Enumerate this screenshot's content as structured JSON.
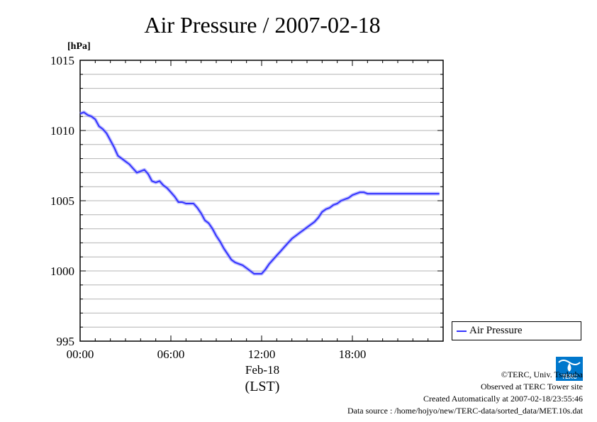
{
  "chart_data": {
    "type": "line",
    "title": "Air Pressure / 2007-02-18",
    "ylabel": "[hPa]",
    "xlabel_date": "Feb-18",
    "xlabel_tz": "(LST)",
    "ylim": [
      995,
      1015
    ],
    "xlim_hours": [
      0,
      24
    ],
    "yticks": [
      995,
      1000,
      1005,
      1010,
      1015
    ],
    "ytick_labels": [
      "995",
      "1000",
      "1005",
      "1010",
      "1015"
    ],
    "xtick_hours": [
      0,
      6,
      12,
      18
    ],
    "xtick_labels": [
      "00:00",
      "06:00",
      "12:00",
      "18:00"
    ],
    "grid": true,
    "legend_position": "right",
    "series": [
      {
        "name": "Air Pressure",
        "color": "#3333ff",
        "x_hours": [
          0,
          0.25,
          0.5,
          0.75,
          1.0,
          1.25,
          1.5,
          1.75,
          2.0,
          2.25,
          2.5,
          2.75,
          3.0,
          3.25,
          3.5,
          3.75,
          4.0,
          4.25,
          4.5,
          4.75,
          5.0,
          5.25,
          5.5,
          5.75,
          6.0,
          6.25,
          6.5,
          6.75,
          7.0,
          7.25,
          7.5,
          7.75,
          8.0,
          8.25,
          8.5,
          8.75,
          9.0,
          9.25,
          9.5,
          9.75,
          10.0,
          10.25,
          10.5,
          10.75,
          11.0,
          11.25,
          11.5,
          11.75,
          12.0,
          12.25,
          12.5,
          12.75,
          13.0,
          13.25,
          13.5,
          13.75,
          14.0,
          14.25,
          14.5,
          14.75,
          15.0,
          15.25,
          15.5,
          15.75,
          16.0,
          16.25,
          16.5,
          16.75,
          17.0,
          17.25,
          17.5,
          17.75,
          18.0,
          18.25,
          18.5,
          18.75,
          19.0,
          19.25,
          19.5,
          19.75,
          20.0,
          20.25,
          20.5,
          20.75,
          21.0,
          21.25,
          21.5,
          21.75,
          22.0,
          22.25,
          22.5,
          22.75,
          23.0,
          23.25,
          23.5,
          23.75
        ],
        "values": [
          1011.2,
          1011.3,
          1011.1,
          1011.0,
          1010.8,
          1010.3,
          1010.1,
          1009.8,
          1009.3,
          1008.8,
          1008.2,
          1008.0,
          1007.8,
          1007.6,
          1007.3,
          1007.0,
          1007.1,
          1007.2,
          1006.9,
          1006.4,
          1006.3,
          1006.4,
          1006.1,
          1005.9,
          1005.6,
          1005.3,
          1004.9,
          1004.9,
          1004.8,
          1004.8,
          1004.8,
          1004.5,
          1004.1,
          1003.6,
          1003.4,
          1003.0,
          1002.5,
          1002.1,
          1001.6,
          1001.2,
          1000.8,
          1000.6,
          1000.5,
          1000.4,
          1000.2,
          1000.0,
          999.8,
          999.8,
          999.8,
          1000.1,
          1000.5,
          1000.8,
          1001.1,
          1001.4,
          1001.7,
          1002.0,
          1002.3,
          1002.5,
          1002.7,
          1002.9,
          1003.1,
          1003.3,
          1003.5,
          1003.8,
          1004.2,
          1004.4,
          1004.5,
          1004.7,
          1004.8,
          1005.0,
          1005.1,
          1005.2,
          1005.4,
          1005.5,
          1005.6,
          1005.6,
          1005.5,
          1005.5,
          1005.5,
          1005.5,
          1005.5,
          1005.5,
          1005.5,
          1005.5,
          1005.5,
          1005.5,
          1005.5,
          1005.5,
          1005.5,
          1005.5,
          1005.5,
          1005.5,
          1005.5,
          1005.5,
          1005.5,
          1005.5
        ]
      }
    ]
  },
  "credits": {
    "copyright": "©TERC, Univ. Tsukuba",
    "observed": "Observed at TERC Tower site",
    "created": "Created Automatically at 2007-02-18/23:55:46",
    "source": "Data source : /home/hojyo/new/TERC-data/sorted_data/MET.10s.dat"
  },
  "logo": {
    "text": "TERC",
    "color": "#0077cc"
  }
}
